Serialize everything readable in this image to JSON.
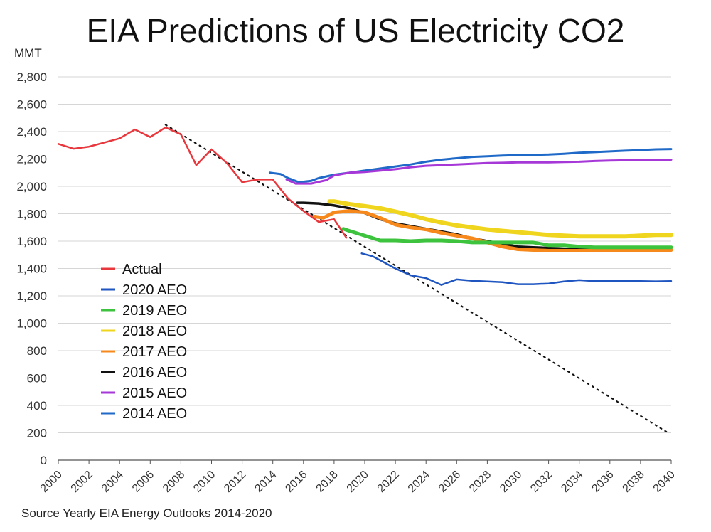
{
  "chart_data": {
    "type": "line",
    "title": "EIA Predictions of US Electricity CO2",
    "ylabel": "MMT",
    "xlabel": "",
    "xlim": [
      2000,
      2040
    ],
    "ylim": [
      0,
      2800
    ],
    "grid": true,
    "legend_position": "bottom-left",
    "x_ticks": [
      "2000",
      "2002",
      "2004",
      "2006",
      "2008",
      "2010",
      "2012",
      "2014",
      "2016",
      "2018",
      "2020",
      "2022",
      "2024",
      "2026",
      "2028",
      "2030",
      "2032",
      "2034",
      "2036",
      "2038",
      "2040"
    ],
    "y_ticks": [
      "0",
      "200",
      "400",
      "600",
      "800",
      "1,000",
      "1,200",
      "1,400",
      "1,600",
      "1,800",
      "2,000",
      "2,200",
      "2,400",
      "2,600",
      "2,800"
    ],
    "series": [
      {
        "name": "Actual",
        "color": "#e8383d",
        "width": 2.5,
        "points": [
          [
            2000,
            2310
          ],
          [
            2001,
            2275
          ],
          [
            2002,
            2290
          ],
          [
            2003,
            2320
          ],
          [
            2004,
            2350
          ],
          [
            2005,
            2415
          ],
          [
            2006,
            2360
          ],
          [
            2007,
            2430
          ],
          [
            2008,
            2380
          ],
          [
            2009,
            2155
          ],
          [
            2010,
            2270
          ],
          [
            2011,
            2170
          ],
          [
            2012,
            2030
          ],
          [
            2013,
            2050
          ],
          [
            2014,
            2050
          ],
          [
            2015,
            1910
          ],
          [
            2016,
            1820
          ],
          [
            2017,
            1740
          ],
          [
            2018,
            1760
          ],
          [
            2018.8,
            1625
          ]
        ]
      },
      {
        "name": "2020 AEO",
        "color": "#1f55c0",
        "width": 2.5,
        "points": [
          [
            2019.8,
            1510
          ],
          [
            2020.5,
            1490
          ],
          [
            2021,
            1460
          ],
          [
            2022,
            1400
          ],
          [
            2023,
            1350
          ],
          [
            2024,
            1330
          ],
          [
            2025,
            1280
          ],
          [
            2026,
            1320
          ],
          [
            2027,
            1310
          ],
          [
            2028,
            1305
          ],
          [
            2029,
            1300
          ],
          [
            2030,
            1285
          ],
          [
            2031,
            1285
          ],
          [
            2032,
            1290
          ],
          [
            2033,
            1305
          ],
          [
            2034,
            1315
          ],
          [
            2035,
            1308
          ],
          [
            2036,
            1308
          ],
          [
            2037,
            1310
          ],
          [
            2038,
            1308
          ],
          [
            2039,
            1306
          ],
          [
            2040,
            1308
          ]
        ]
      },
      {
        "name": "2019 AEO",
        "color": "#3ec33e",
        "width": 5,
        "points": [
          [
            2018.6,
            1690
          ],
          [
            2019,
            1675
          ],
          [
            2020,
            1640
          ],
          [
            2021,
            1605
          ],
          [
            2022,
            1605
          ],
          [
            2023,
            1600
          ],
          [
            2024,
            1605
          ],
          [
            2025,
            1605
          ],
          [
            2026,
            1600
          ],
          [
            2027,
            1590
          ],
          [
            2028,
            1590
          ],
          [
            2029,
            1590
          ],
          [
            2030,
            1590
          ],
          [
            2031,
            1590
          ],
          [
            2032,
            1570
          ],
          [
            2033,
            1570
          ],
          [
            2034,
            1560
          ],
          [
            2035,
            1555
          ],
          [
            2036,
            1555
          ],
          [
            2037,
            1555
          ],
          [
            2038,
            1555
          ],
          [
            2040,
            1555
          ]
        ]
      },
      {
        "name": "2018 AEO",
        "color": "#f0d51e",
        "width": 6,
        "points": [
          [
            2017.7,
            1890
          ],
          [
            2018,
            1890
          ],
          [
            2019,
            1870
          ],
          [
            2020,
            1855
          ],
          [
            2021,
            1840
          ],
          [
            2022,
            1815
          ],
          [
            2023,
            1790
          ],
          [
            2024,
            1760
          ],
          [
            2025,
            1735
          ],
          [
            2026,
            1715
          ],
          [
            2027,
            1700
          ],
          [
            2028,
            1685
          ],
          [
            2029,
            1675
          ],
          [
            2030,
            1665
          ],
          [
            2031,
            1655
          ],
          [
            2032,
            1645
          ],
          [
            2033,
            1640
          ],
          [
            2034,
            1635
          ],
          [
            2035,
            1635
          ],
          [
            2036,
            1635
          ],
          [
            2037,
            1635
          ],
          [
            2038,
            1640
          ],
          [
            2039,
            1645
          ],
          [
            2040,
            1645
          ]
        ]
      },
      {
        "name": "2017 AEO",
        "color": "#f6881c",
        "width": 5,
        "points": [
          [
            2016.7,
            1780
          ],
          [
            2017.3,
            1770
          ],
          [
            2018,
            1810
          ],
          [
            2019,
            1820
          ],
          [
            2020,
            1810
          ],
          [
            2021,
            1770
          ],
          [
            2022,
            1720
          ],
          [
            2023,
            1700
          ],
          [
            2024,
            1685
          ],
          [
            2025,
            1660
          ],
          [
            2026,
            1640
          ],
          [
            2027,
            1620
          ],
          [
            2028,
            1590
          ],
          [
            2029,
            1560
          ],
          [
            2030,
            1540
          ],
          [
            2031,
            1535
          ],
          [
            2032,
            1530
          ],
          [
            2033,
            1530
          ],
          [
            2034,
            1530
          ],
          [
            2035,
            1530
          ],
          [
            2036,
            1530
          ],
          [
            2037,
            1530
          ],
          [
            2038,
            1530
          ],
          [
            2039,
            1530
          ],
          [
            2040,
            1535
          ]
        ]
      },
      {
        "name": "2016 AEO",
        "color": "#111111",
        "width": 3.5,
        "points": [
          [
            2015.6,
            1880
          ],
          [
            2016,
            1880
          ],
          [
            2017,
            1875
          ],
          [
            2018,
            1860
          ],
          [
            2019,
            1840
          ],
          [
            2020,
            1805
          ],
          [
            2021,
            1760
          ],
          [
            2022,
            1730
          ],
          [
            2023,
            1710
          ],
          [
            2024,
            1690
          ],
          [
            2025,
            1670
          ],
          [
            2026,
            1650
          ],
          [
            2027,
            1620
          ],
          [
            2028,
            1600
          ],
          [
            2029,
            1580
          ],
          [
            2030,
            1560
          ],
          [
            2031,
            1555
          ],
          [
            2032,
            1550
          ],
          [
            2033,
            1545
          ],
          [
            2034,
            1540
          ],
          [
            2035,
            1540
          ],
          [
            2036,
            1540
          ],
          [
            2037,
            1540
          ],
          [
            2038,
            1540
          ],
          [
            2039,
            1540
          ],
          [
            2040,
            1540
          ]
        ]
      },
      {
        "name": "2015 AEO",
        "color": "#a738d8",
        "width": 3,
        "points": [
          [
            2014.9,
            2050
          ],
          [
            2015.5,
            2020
          ],
          [
            2016.5,
            2020
          ],
          [
            2017.5,
            2045
          ],
          [
            2018,
            2080
          ],
          [
            2019,
            2100
          ],
          [
            2020,
            2105
          ],
          [
            2021,
            2115
          ],
          [
            2022,
            2125
          ],
          [
            2023,
            2140
          ],
          [
            2024,
            2150
          ],
          [
            2025,
            2155
          ],
          [
            2026,
            2160
          ],
          [
            2027,
            2165
          ],
          [
            2028,
            2170
          ],
          [
            2029,
            2172
          ],
          [
            2030,
            2175
          ],
          [
            2031,
            2175
          ],
          [
            2032,
            2175
          ],
          [
            2033,
            2178
          ],
          [
            2034,
            2180
          ],
          [
            2035,
            2185
          ],
          [
            2036,
            2188
          ],
          [
            2037,
            2190
          ],
          [
            2038,
            2192
          ],
          [
            2039,
            2195
          ],
          [
            2040,
            2195
          ]
        ]
      },
      {
        "name": "2014 AEO",
        "color": "#1f6ac8",
        "width": 3,
        "points": [
          [
            2013.8,
            2100
          ],
          [
            2014.5,
            2090
          ],
          [
            2015,
            2060
          ],
          [
            2015.7,
            2030
          ],
          [
            2016.5,
            2040
          ],
          [
            2017,
            2060
          ],
          [
            2018,
            2085
          ],
          [
            2019,
            2100
          ],
          [
            2020,
            2115
          ],
          [
            2021,
            2130
          ],
          [
            2022,
            2145
          ],
          [
            2023,
            2160
          ],
          [
            2024,
            2180
          ],
          [
            2025,
            2195
          ],
          [
            2026,
            2205
          ],
          [
            2027,
            2215
          ],
          [
            2028,
            2220
          ],
          [
            2029,
            2225
          ],
          [
            2030,
            2228
          ],
          [
            2031,
            2230
          ],
          [
            2032,
            2232
          ],
          [
            2033,
            2238
          ],
          [
            2034,
            2245
          ],
          [
            2035,
            2250
          ],
          [
            2036,
            2255
          ],
          [
            2037,
            2260
          ],
          [
            2038,
            2265
          ],
          [
            2039,
            2270
          ],
          [
            2040,
            2272
          ]
        ]
      }
    ],
    "trend_line": {
      "style": "dotted",
      "color": "#111111",
      "points": [
        [
          2007,
          2450
        ],
        [
          2039.8,
          200
        ]
      ]
    },
    "source": "Source Yearly EIA Energy Outlooks 2014-2020"
  }
}
